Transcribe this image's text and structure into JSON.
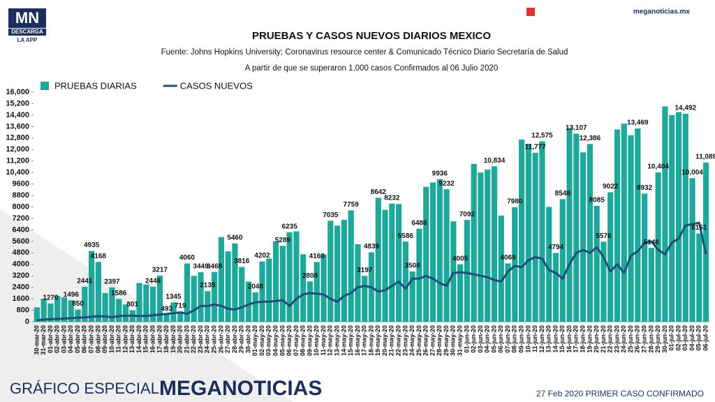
{
  "branding": {
    "logo": "MN",
    "logo_sub1": "DESCARGA",
    "logo_sub2": "LA APP",
    "site": "meganoticias.mx",
    "footer_left": "GRÁFICO ESPECIAL",
    "footer_brand": "MEGANOTICIAS",
    "footer_right": "27 Feb 2020 PRIMER CASO CONFIRMADO"
  },
  "chart_data": {
    "type": "bar-line",
    "title": "PRUEBAS Y CASOS NUEVOS DIARIOS MEXICO",
    "subtitle": "Fuente: Johns Hopkins University; Coronavirus resource center & Comunicado Técnico Diario Secretaría de Salud",
    "note": "A partir de que se superaron 1,000 casos Confirmados al 06 Julio 2020",
    "categories": [
      "30-mar-20",
      "31-mar-20",
      "01-abr-20",
      "02-abr-20",
      "03-abr-20",
      "04-abr-20",
      "05-abr-20",
      "06-abr-20",
      "07-abr-20",
      "08-abr-20",
      "09-abr-20",
      "10-abr-20",
      "11-abr-20",
      "12-abr-20",
      "13-abr-20",
      "14-abr-20",
      "15-abr-20",
      "16-abr-20",
      "17-abr-20",
      "18-abr-20",
      "19-abr-20",
      "20-abr-20",
      "21-abr-20",
      "22-abr-20",
      "23-abr-20",
      "24-abr-20",
      "25-abr-20",
      "26-abr-20",
      "27-abr-20",
      "28-abr-20",
      "29-abr-20",
      "30-abr-20",
      "01-may-20",
      "02-may-20",
      "03-may-20",
      "04-may-20",
      "05-may-20",
      "06-may-20",
      "07-may-20",
      "08-may-20",
      "09-may-20",
      "10-may-20",
      "11-may-20",
      "12-may-20",
      "13-may-20",
      "14-may-20",
      "15-may-20",
      "16-may-20",
      "17-may-20",
      "18-may-20",
      "19-may-20",
      "20-may-20",
      "21-may-20",
      "22-may-20",
      "23-may-20",
      "24-may-20",
      "25-may-20",
      "26-may-20",
      "27-may-20",
      "28-may-20",
      "29-may-20",
      "30-may-20",
      "31-may-20",
      "01-jun-20",
      "02-jun-20",
      "03-jun-20",
      "04-jun-20",
      "05-jun-20",
      "06-jun-20",
      "07-jun-20",
      "08-jun-20",
      "09-jun-20",
      "10-jun-20",
      "11-jun-20",
      "12-jun-20",
      "13-jun-20",
      "14-jun-20",
      "15-jun-20",
      "16-jun-20",
      "17-jun-20",
      "18-jun-20",
      "19-jun-20",
      "20-jun-20",
      "21-jun-20",
      "22-jun-20",
      "23-jun-20",
      "24-jun-20",
      "25-jun-20",
      "26-jun-20",
      "27-jun-20",
      "28-jun-20",
      "29-jun-20",
      "30-jun-20",
      "01-jul-20",
      "02-jul-20",
      "03-jul-20",
      "04-jul-20",
      "05-jul-20",
      "06-jul-20"
    ],
    "series": [
      {
        "name": "PRUEBAS DIARIAS",
        "type": "bar",
        "color": "#1ea89b",
        "values": [
          1000,
          1600,
          1270,
          1800,
          1700,
          1496,
          850,
          2441,
          4935,
          4168,
          2000,
          2397,
          1586,
          1200,
          801,
          2700,
          2600,
          2446,
          3217,
          493,
          1345,
          719,
          4060,
          3200,
          3449,
          2135,
          3468,
          5900,
          4900,
          5460,
          3816,
          2800,
          2048,
          4202,
          4400,
          5600,
          5289,
          6235,
          6300,
          4700,
          2808,
          4160,
          4700,
          7035,
          6700,
          7100,
          7759,
          5400,
          3197,
          4839,
          8642,
          7800,
          8232,
          8200,
          5586,
          3508,
          6486,
          9400,
          9700,
          9936,
          9232,
          7000,
          4005,
          7092,
          11000,
          10400,
          10600,
          10834,
          7400,
          4069,
          7980,
          12700,
          12400,
          11777,
          12575,
          8000,
          4794,
          8548,
          13500,
          13107,
          11800,
          12386,
          8085,
          5576,
          9022,
          13400,
          13800,
          13000,
          13469,
          8932,
          5146,
          10404,
          15000,
          14400,
          14600,
          14492,
          10004,
          6151,
          11089
        ],
        "value_labels": [
          null,
          null,
          "1270",
          null,
          null,
          "1496",
          "850",
          "2441",
          "4935",
          "4168",
          null,
          "2397",
          "1586",
          null,
          "801",
          null,
          null,
          "2446",
          "3217",
          "493",
          "1345",
          "719",
          "4060",
          null,
          "3449",
          "2135",
          "3468",
          null,
          null,
          "5460",
          "3816",
          null,
          "2048",
          "4202",
          null,
          null,
          "5289",
          "6235",
          null,
          null,
          "2808",
          "4160",
          null,
          "7035",
          null,
          null,
          "7759",
          null,
          "3197",
          "4839",
          "8642",
          null,
          "8232",
          null,
          "5586",
          "3508",
          "6486",
          null,
          null,
          "9936",
          "9232",
          null,
          "4005",
          "7092",
          null,
          null,
          null,
          "10,834",
          null,
          "4069",
          "7980",
          null,
          null,
          "11,777",
          "12,575",
          null,
          "4794",
          "8548",
          null,
          "13,107",
          null,
          "12,386",
          "8085",
          "5576",
          "9022",
          null,
          null,
          null,
          "13,469",
          "8932",
          "5146",
          "10,404",
          null,
          null,
          null,
          "14,492",
          "10,004",
          "6151",
          "11,089"
        ]
      },
      {
        "name": "CASOS NUEVOS",
        "type": "line",
        "color": "#1b4f78",
        "values": [
          100,
          150,
          180,
          200,
          220,
          250,
          280,
          300,
          350,
          380,
          380,
          300,
          400,
          420,
          430,
          400,
          400,
          450,
          500,
          550,
          600,
          650,
          550,
          800,
          1100,
          1100,
          1200,
          1100,
          900,
          850,
          1000,
          1200,
          1350,
          1400,
          1400,
          1450,
          1500,
          1100,
          1600,
          1900,
          2000,
          1950,
          1900,
          1600,
          1400,
          1800,
          2000,
          2400,
          2500,
          2400,
          2100,
          2200,
          2500,
          2800,
          2300,
          3000,
          3000,
          3200,
          3000,
          2700,
          2500,
          3400,
          3450,
          3400,
          3300,
          3200,
          3100,
          2900,
          2800,
          3500,
          3900,
          3800,
          4300,
          4500,
          4400,
          3600,
          3400,
          3000,
          4000,
          4800,
          5000,
          4800,
          5200,
          4500,
          3500,
          4000,
          3400,
          4600,
          4900,
          5500,
          5600,
          5000,
          4700,
          5500,
          5800,
          6700,
          6800,
          6900,
          4700
        ]
      }
    ],
    "ylim": [
      0,
      16000
    ],
    "yticks": [
      0,
      800,
      1600,
      2400,
      3200,
      4000,
      4800,
      5600,
      6400,
      7200,
      8000,
      8800,
      9600,
      {
        "value": 10400,
        "label": "10,400"
      },
      {
        "value": 11200,
        "label": "11,200"
      },
      {
        "value": 12000,
        "label": "12,000"
      },
      {
        "value": 12800,
        "label": "12,800"
      },
      {
        "value": 13600,
        "label": "13,600"
      },
      {
        "value": 14400,
        "label": "14,400"
      },
      {
        "value": 15200,
        "label": "15,200"
      },
      {
        "value": 16000,
        "label": "16,000"
      }
    ],
    "legend": "top-left",
    "grid": false
  }
}
